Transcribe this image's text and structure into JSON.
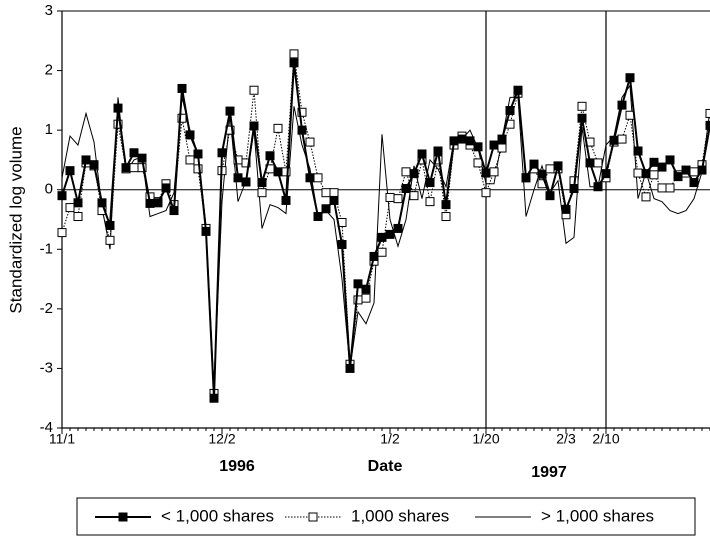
{
  "chart_data": {
    "type": "line",
    "x_label": "Date",
    "y_label": "Standardized log volume",
    "annotations": [
      "1996",
      "1997"
    ],
    "categories": [
      "11/1",
      null,
      null,
      null,
      null,
      null,
      null,
      null,
      null,
      null,
      null,
      null,
      null,
      null,
      null,
      null,
      null,
      null,
      null,
      null,
      "12/2",
      null,
      null,
      null,
      null,
      null,
      null,
      null,
      null,
      null,
      null,
      null,
      null,
      null,
      null,
      null,
      null,
      null,
      null,
      null,
      null,
      "1/2",
      null,
      null,
      null,
      null,
      null,
      null,
      null,
      null,
      null,
      null,
      null,
      "1/20",
      null,
      null,
      null,
      null,
      null,
      null,
      null,
      null,
      null,
      "2/3",
      null,
      null,
      null,
      null,
      "2/10",
      null,
      null,
      null,
      null,
      null,
      null,
      null,
      null,
      null,
      null,
      null,
      null,
      null
    ],
    "vertical_lines": [
      "1/20",
      "2/10"
    ],
    "ylim": [
      -4,
      3
    ],
    "yticks": [
      -4,
      -3,
      -2,
      -1,
      0,
      1,
      2,
      3
    ],
    "zero_line": true,
    "series": [
      {
        "name": "< 1,000 shares",
        "color": "#000000",
        "marker": "filled-square",
        "dash": "solid",
        "values": [
          -0.1,
          0.32,
          -0.22,
          0.5,
          0.42,
          -0.22,
          -0.6,
          1.37,
          0.37,
          0.62,
          0.53,
          -0.23,
          -0.22,
          0.03,
          -0.35,
          1.7,
          0.92,
          0.6,
          -0.7,
          -3.5,
          0.62,
          1.32,
          0.2,
          0.13,
          1.07,
          0.12,
          0.57,
          0.3,
          -0.18,
          2.13,
          1.0,
          0.2,
          -0.45,
          -0.32,
          -0.18,
          -0.92,
          -3.0,
          -1.58,
          -1.67,
          -1.12,
          -0.8,
          -0.75,
          -0.65,
          0.02,
          0.27,
          0.6,
          0.12,
          0.65,
          -0.25,
          0.82,
          0.85,
          0.82,
          0.72,
          0.28,
          0.75,
          0.85,
          1.33,
          1.67,
          0.2,
          0.43,
          0.26,
          -0.1,
          0.4,
          -0.33,
          0.02,
          1.2,
          0.45,
          0.05,
          0.27,
          0.83,
          1.42,
          1.88,
          0.65,
          0.27,
          0.46,
          0.38,
          0.5,
          0.22,
          0.33,
          0.12,
          0.33,
          1.08
        ]
      },
      {
        "name": "1,000 shares",
        "color": "#000000",
        "marker": "open-square",
        "dash": "dotted",
        "values": [
          -0.72,
          -0.3,
          -0.45,
          0.45,
          0.4,
          -0.35,
          -0.85,
          1.1,
          0.35,
          0.37,
          0.37,
          -0.12,
          -0.2,
          0.1,
          -0.25,
          1.2,
          0.5,
          0.35,
          -0.65,
          -3.42,
          0.32,
          1.0,
          0.5,
          0.45,
          1.67,
          -0.05,
          0.35,
          1.03,
          0.3,
          2.28,
          1.3,
          0.8,
          0.2,
          -0.05,
          -0.05,
          -0.55,
          -2.93,
          -1.85,
          -1.82,
          -1.2,
          -1.05,
          -0.13,
          -0.15,
          0.3,
          -0.1,
          0.5,
          -0.2,
          0.5,
          -0.45,
          0.75,
          0.9,
          0.75,
          0.45,
          -0.05,
          0.3,
          0.7,
          1.1,
          1.62,
          0.2,
          0.35,
          0.1,
          0.35,
          0.35,
          -0.42,
          0.15,
          1.4,
          0.8,
          0.45,
          0.2,
          0.8,
          0.85,
          1.25,
          0.28,
          -0.12,
          0.25,
          0.03,
          0.03,
          0.25,
          0.28,
          0.3,
          0.42,
          1.28
        ]
      },
      {
        "name": "> 1,000 shares",
        "color": "#000000",
        "marker": "none",
        "dash": "solid",
        "values": [
          0.2,
          0.9,
          0.75,
          1.28,
          0.8,
          -0.3,
          -1.0,
          1.55,
          0.3,
          0.5,
          0.55,
          -0.45,
          -0.4,
          -0.35,
          -0.05,
          1.55,
          1.0,
          0.6,
          -0.6,
          -3.35,
          -0.2,
          1.25,
          -0.2,
          0.15,
          1.0,
          -0.65,
          -0.25,
          -0.3,
          -0.4,
          1.4,
          0.75,
          0.35,
          -0.45,
          -0.35,
          -0.5,
          -1.5,
          -3.0,
          -2.05,
          -2.25,
          -1.9,
          0.93,
          -0.5,
          -0.95,
          -0.5,
          0.4,
          -0.15,
          0.5,
          0.35,
          0.05,
          0.85,
          0.85,
          1.0,
          0.7,
          0.1,
          0.1,
          0.85,
          1.55,
          1.55,
          -0.45,
          0.0,
          0.4,
          -0.05,
          0.15,
          -0.9,
          -0.8,
          1.05,
          0.05,
          0.05,
          0.75,
          0.9,
          1.55,
          1.75,
          -0.15,
          0.3,
          -0.15,
          -0.2,
          -0.35,
          -0.4,
          -0.35,
          -0.15,
          0.3,
          1.35
        ]
      }
    ]
  }
}
